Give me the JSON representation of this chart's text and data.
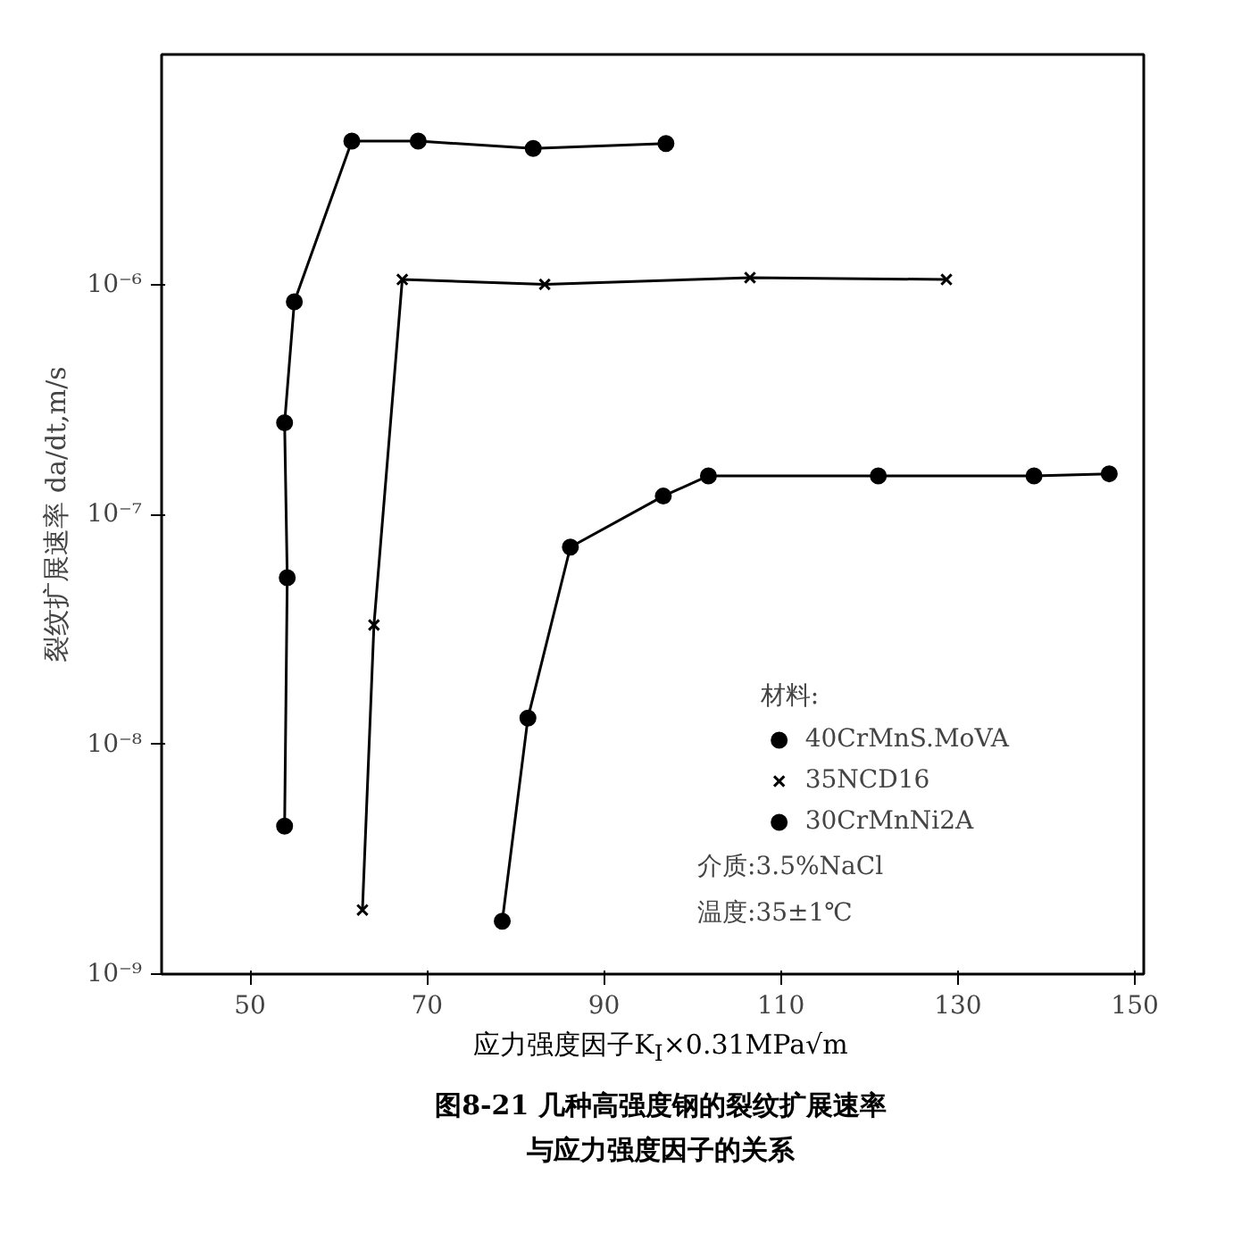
{
  "chart_data": {
    "type": "line",
    "title": "图8-21  几种高强度钢的裂纹扩展速率",
    "subtitle": "与应力强度因子的关系",
    "xlabel": "应力强度因子K$_{I}$×0.31MPa√m",
    "ylabel": "裂纹扩展速率 da/dt,m/s",
    "legend_title": "材料:",
    "legend": "bottom right",
    "log": "y",
    "grid": false,
    "xlim": [
      40,
      151
    ],
    "xticks": [
      50,
      70,
      90,
      110,
      130,
      150
    ],
    "ylim": [
      1e-09,
      1e-05
    ],
    "yticks": [
      {
        "value": 1e-09,
        "label": "10⁻⁹"
      },
      {
        "value": 1e-08,
        "label": "10⁻⁸"
      },
      {
        "value": 1e-07,
        "label": "10⁻⁷"
      },
      {
        "value": 1e-06,
        "label": "10⁻⁶"
      }
    ],
    "annotations": [
      "介质:3.5%NaCl",
      "温度:35±1℃"
    ],
    "series": [
      {
        "name": "40CrMnS.MoVA",
        "color": "#000000",
        "marker": "circle",
        "x": [
          78.5,
          81.4,
          86.2,
          96.7,
          101.8,
          121,
          138.6,
          147.1
        ],
        "values": [
          1.7e-09,
          1.3e-08,
          7.2e-08,
          1.2e-07,
          1.47e-07,
          1.47e-07,
          1.47e-07,
          1.5e-07
        ]
      },
      {
        "name": "35NCD16",
        "color": "#000000",
        "marker": "cross",
        "x": [
          62.7,
          64,
          67.2,
          83.3,
          106.5,
          128.7
        ],
        "values": [
          1.9e-09,
          3.3e-08,
          1.05e-06,
          1e-06,
          1.07e-06,
          1.05e-06
        ]
      },
      {
        "name": "30CrMnNi2A",
        "color": "#000000",
        "marker": "circle",
        "x": [
          53.9,
          54.2,
          53.9,
          55,
          61.5,
          69,
          82,
          97
        ],
        "values": [
          4.4e-09,
          5.3e-08,
          2.5e-07,
          8.4e-07,
          4.2e-06,
          4.2e-06,
          3.9e-06,
          4.1e-06
        ]
      }
    ]
  }
}
